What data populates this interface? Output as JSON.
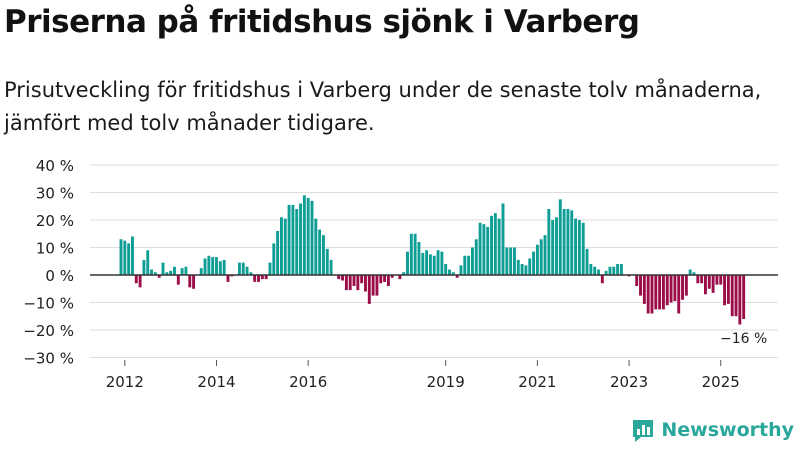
{
  "title": "Priserna på fritidshus sjönk i Varberg",
  "subtitle": "Prisutveckling för fritidshus i Varberg under de senaste tolv månaderna, jämfört med tolv månader tidigare.",
  "brand": "Newsworthy",
  "colors": {
    "positive": "#0f9e96",
    "negative": "#9b0d48",
    "zero_line": "#333333",
    "grid": "#dddddd",
    "brand": "#2aa79b"
  },
  "chart_data": {
    "type": "bar",
    "x_start": "2011-12",
    "x_step": "month",
    "ylim": [
      -30,
      40
    ],
    "yticks": [
      40,
      30,
      20,
      10,
      0,
      -10,
      -20,
      -30
    ],
    "ytick_labels": [
      "40 %",
      "30 %",
      "20 %",
      "10 %",
      "0 %",
      "−10 %",
      "−20 %",
      "−30 %"
    ],
    "xtick_labels": [
      "2012",
      "2014",
      "2016",
      "2019",
      "2021",
      "2023",
      "2025"
    ],
    "xtick_index": [
      1,
      25,
      49,
      85,
      109,
      133,
      157
    ],
    "last_label": "−16 %",
    "values": [
      13,
      12.5,
      11.5,
      14,
      -3,
      -4.5,
      5.5,
      9,
      2,
      1,
      -1,
      4.5,
      1,
      1.5,
      3,
      -3.5,
      2.5,
      3,
      -4.5,
      -5,
      0,
      2.5,
      6,
      7,
      6.5,
      6.5,
      5,
      5.5,
      -2.5,
      -0.5,
      0,
      4.5,
      4.5,
      3,
      1,
      -2.5,
      -2.5,
      -1.5,
      -1.5,
      4.5,
      11.5,
      16,
      21,
      20.5,
      25.5,
      25.5,
      24,
      26,
      29,
      28,
      27,
      20.5,
      16.5,
      14.5,
      9.5,
      5.5,
      0,
      -1.5,
      -2,
      -5.5,
      -5.5,
      -4,
      -5.5,
      -3,
      -6,
      -10.5,
      -7.5,
      -7.5,
      -3,
      -2.5,
      -4,
      -1,
      0,
      -1.5,
      1,
      8.5,
      15,
      15,
      12,
      8,
      9,
      7.5,
      7,
      9,
      8.5,
      4,
      2,
      1,
      -1,
      3.5,
      7,
      7,
      10,
      13,
      19,
      18.5,
      17.5,
      21.5,
      22.5,
      20.5,
      26,
      10,
      10,
      10,
      5.5,
      4,
      3.5,
      6,
      8.5,
      11,
      13,
      14.5,
      24,
      20,
      21,
      27.5,
      24,
      24,
      23.5,
      20.5,
      20,
      19,
      9.5,
      4,
      3,
      2,
      -3,
      1.5,
      3,
      3,
      4,
      4,
      0,
      -0.5,
      0,
      -4,
      -7.5,
      -10.5,
      -14,
      -14,
      -12.5,
      -12.5,
      -12.5,
      -11,
      -10,
      -9.5,
      -14,
      -9,
      -7.5,
      2,
      1,
      -3,
      -3,
      -7,
      -5,
      -6.5,
      -3.5,
      -3.5,
      -11,
      -10.5,
      -15,
      -15,
      -18,
      -16
    ]
  }
}
